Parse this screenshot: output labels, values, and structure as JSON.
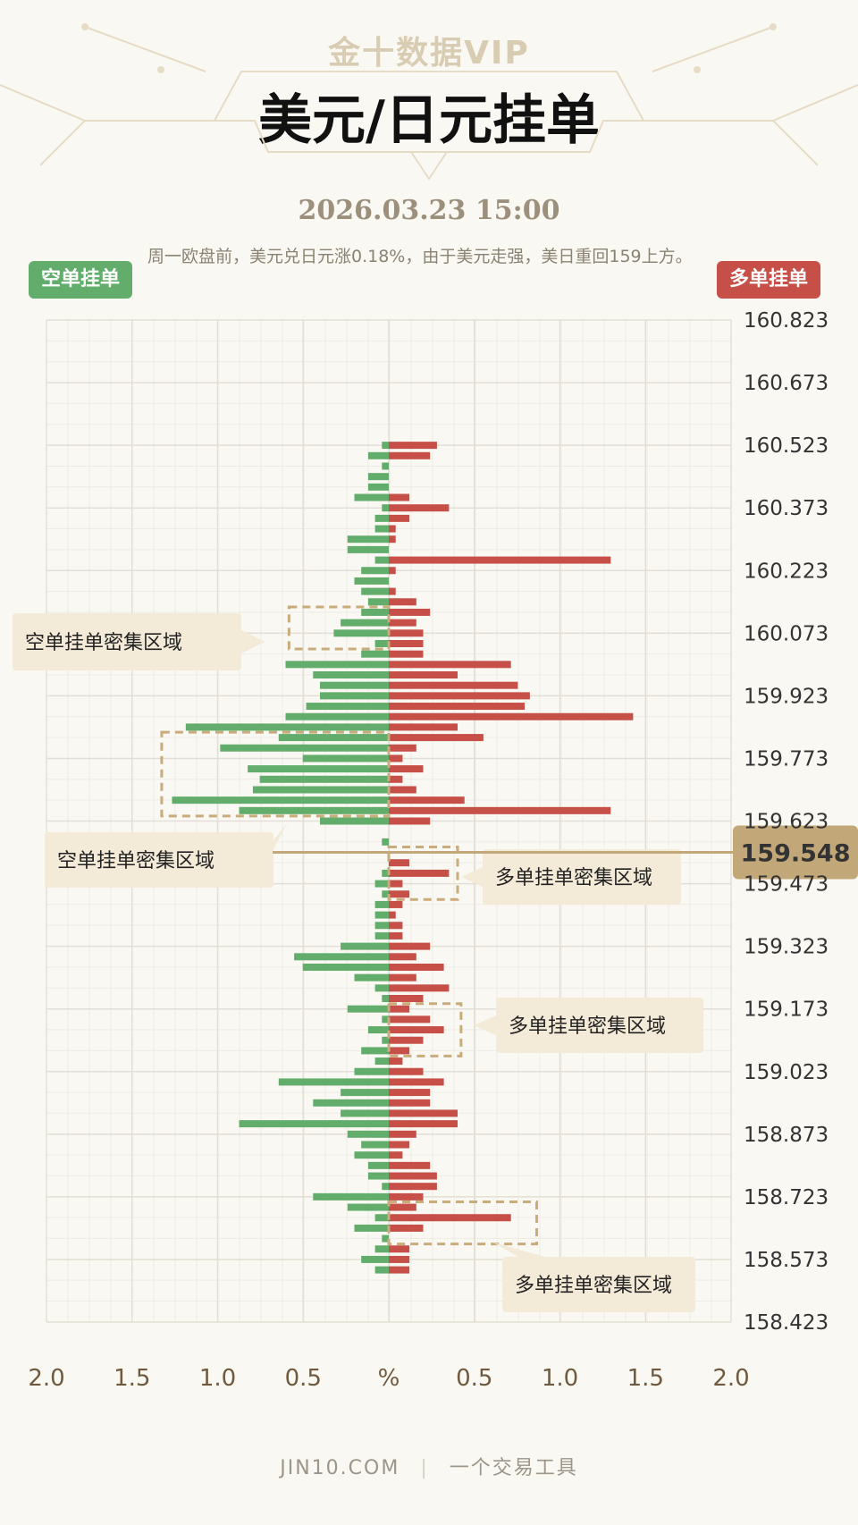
{
  "brand": "金十数据VIP",
  "title": "美元/日元挂单",
  "datetime": "2026.03.23 15:00",
  "summary": "周一欧盘前，美元兑日元涨0.18%，由于美元走强，美日重回159上方。",
  "legend": {
    "short_label": "空单挂单",
    "long_label": "多单挂单"
  },
  "footer": {
    "site": "JIN10.COM",
    "slogan": "一个交易工具"
  },
  "annotations": {
    "short_zone_1": "空单挂单密集区域",
    "short_zone_2": "空单挂单密集区域",
    "long_zone_1": "多单挂单密集区域",
    "long_zone_2": "多单挂单密集区域",
    "long_zone_3": "多单挂单密集区域"
  },
  "colors": {
    "short": "#63ad6c",
    "long": "#c64f48",
    "current": "#c2a878",
    "callout_bg": "#f3ead8"
  },
  "chart_data": {
    "type": "bar",
    "orientation": "horizontal-diverging",
    "y_ticks": [
      "160.823",
      "160.673",
      "160.523",
      "160.373",
      "160.223",
      "160.073",
      "159.923",
      "159.773",
      "159.623",
      "159.473",
      "159.323",
      "159.173",
      "159.023",
      "158.873",
      "158.723",
      "158.573",
      "158.423"
    ],
    "x_ticks_left": [
      "2.0",
      "1.5",
      "1.0",
      "0.5"
    ],
    "x_center_label": "%",
    "x_ticks_right": [
      "0.5",
      "1.0",
      "1.5",
      "2.0"
    ],
    "xlim": [
      -2.0,
      2.0
    ],
    "ylim": [
      158.423,
      160.823
    ],
    "current_price": "159.548",
    "current_price_value": 159.548,
    "series": [
      {
        "name": "空单挂单",
        "side": "left",
        "points": [
          [
            160.523,
            0.04
          ],
          [
            160.498,
            0.12
          ],
          [
            160.473,
            0.04
          ],
          [
            160.448,
            0.12
          ],
          [
            160.423,
            0.12
          ],
          [
            160.398,
            0.2
          ],
          [
            160.373,
            0.04
          ],
          [
            160.348,
            0.08
          ],
          [
            160.323,
            0.08
          ],
          [
            160.298,
            0.24
          ],
          [
            160.273,
            0.24
          ],
          [
            160.248,
            0.08
          ],
          [
            160.223,
            0.16
          ],
          [
            160.198,
            0.2
          ],
          [
            160.173,
            0.16
          ],
          [
            160.148,
            0.12
          ],
          [
            160.123,
            0.16
          ],
          [
            160.098,
            0.28
          ],
          [
            160.073,
            0.32
          ],
          [
            160.048,
            0.08
          ],
          [
            160.023,
            0.16
          ],
          [
            159.998,
            0.6
          ],
          [
            159.973,
            0.44
          ],
          [
            159.948,
            0.4
          ],
          [
            159.923,
            0.4
          ],
          [
            159.898,
            0.48
          ],
          [
            159.873,
            0.6
          ],
          [
            159.848,
            1.18
          ],
          [
            159.823,
            0.64
          ],
          [
            159.798,
            0.98
          ],
          [
            159.773,
            0.5
          ],
          [
            159.748,
            0.82
          ],
          [
            159.723,
            0.75
          ],
          [
            159.698,
            0.79
          ],
          [
            159.673,
            1.26
          ],
          [
            159.648,
            0.87
          ],
          [
            159.623,
            0.4
          ],
          [
            159.573,
            0.04
          ],
          [
            159.498,
            0.04
          ],
          [
            159.473,
            0.08
          ],
          [
            159.448,
            0.04
          ],
          [
            159.423,
            0.08
          ],
          [
            159.398,
            0.08
          ],
          [
            159.373,
            0.08
          ],
          [
            159.348,
            0.08
          ],
          [
            159.323,
            0.28
          ],
          [
            159.298,
            0.55
          ],
          [
            159.273,
            0.5
          ],
          [
            159.248,
            0.2
          ],
          [
            159.223,
            0.08
          ],
          [
            159.198,
            0.04
          ],
          [
            159.173,
            0.24
          ],
          [
            159.148,
            0.04
          ],
          [
            159.123,
            0.12
          ],
          [
            159.098,
            0.04
          ],
          [
            159.073,
            0.16
          ],
          [
            159.048,
            0.08
          ],
          [
            159.023,
            0.2
          ],
          [
            158.998,
            0.64
          ],
          [
            158.973,
            0.28
          ],
          [
            158.948,
            0.44
          ],
          [
            158.923,
            0.28
          ],
          [
            158.898,
            0.87
          ],
          [
            158.873,
            0.24
          ],
          [
            158.848,
            0.16
          ],
          [
            158.823,
            0.2
          ],
          [
            158.798,
            0.12
          ],
          [
            158.773,
            0.12
          ],
          [
            158.748,
            0.04
          ],
          [
            158.723,
            0.44
          ],
          [
            158.698,
            0.24
          ],
          [
            158.673,
            0.08
          ],
          [
            158.648,
            0.2
          ],
          [
            158.623,
            0.04
          ],
          [
            158.598,
            0.08
          ],
          [
            158.573,
            0.16
          ],
          [
            158.548,
            0.08
          ]
        ]
      },
      {
        "name": "多单挂单",
        "side": "right",
        "points": [
          [
            160.523,
            0.28
          ],
          [
            160.498,
            0.24
          ],
          [
            160.398,
            0.12
          ],
          [
            160.373,
            0.35
          ],
          [
            160.348,
            0.12
          ],
          [
            160.323,
            0.04
          ],
          [
            160.298,
            0.04
          ],
          [
            160.248,
            1.29
          ],
          [
            160.223,
            0.04
          ],
          [
            160.173,
            0.04
          ],
          [
            160.148,
            0.16
          ],
          [
            160.123,
            0.24
          ],
          [
            160.098,
            0.16
          ],
          [
            160.073,
            0.2
          ],
          [
            160.048,
            0.2
          ],
          [
            160.023,
            0.2
          ],
          [
            159.998,
            0.71
          ],
          [
            159.973,
            0.4
          ],
          [
            159.948,
            0.75
          ],
          [
            159.923,
            0.82
          ],
          [
            159.898,
            0.79
          ],
          [
            159.873,
            1.42
          ],
          [
            159.848,
            0.4
          ],
          [
            159.823,
            0.55
          ],
          [
            159.798,
            0.16
          ],
          [
            159.773,
            0.08
          ],
          [
            159.748,
            0.2
          ],
          [
            159.723,
            0.08
          ],
          [
            159.698,
            0.16
          ],
          [
            159.673,
            0.44
          ],
          [
            159.648,
            1.29
          ],
          [
            159.623,
            0.24
          ],
          [
            159.523,
            0.12
          ],
          [
            159.498,
            0.35
          ],
          [
            159.473,
            0.08
          ],
          [
            159.448,
            0.12
          ],
          [
            159.423,
            0.08
          ],
          [
            159.398,
            0.04
          ],
          [
            159.373,
            0.08
          ],
          [
            159.348,
            0.08
          ],
          [
            159.323,
            0.24
          ],
          [
            159.298,
            0.16
          ],
          [
            159.273,
            0.32
          ],
          [
            159.248,
            0.16
          ],
          [
            159.223,
            0.35
          ],
          [
            159.198,
            0.2
          ],
          [
            159.173,
            0.12
          ],
          [
            159.148,
            0.24
          ],
          [
            159.123,
            0.32
          ],
          [
            159.098,
            0.2
          ],
          [
            159.073,
            0.12
          ],
          [
            159.048,
            0.08
          ],
          [
            159.023,
            0.2
          ],
          [
            158.998,
            0.32
          ],
          [
            158.973,
            0.24
          ],
          [
            158.948,
            0.24
          ],
          [
            158.923,
            0.4
          ],
          [
            158.898,
            0.4
          ],
          [
            158.873,
            0.16
          ],
          [
            158.848,
            0.12
          ],
          [
            158.823,
            0.08
          ],
          [
            158.798,
            0.24
          ],
          [
            158.773,
            0.28
          ],
          [
            158.748,
            0.28
          ],
          [
            158.723,
            0.2
          ],
          [
            158.698,
            0.16
          ],
          [
            158.673,
            0.71
          ],
          [
            158.648,
            0.2
          ],
          [
            158.598,
            0.12
          ],
          [
            158.573,
            0.12
          ],
          [
            158.548,
            0.12
          ]
        ]
      }
    ],
    "zones": [
      {
        "side": "short",
        "from": 160.048,
        "to": 160.123,
        "x_from": -0.58,
        "x_to": 0.0,
        "label_key": "short_zone_1"
      },
      {
        "side": "short",
        "from": 159.648,
        "to": 159.823,
        "x_from": -1.32,
        "x_to": 0.0,
        "label_key": "short_zone_2"
      },
      {
        "side": "long",
        "from": 159.448,
        "to": 159.548,
        "x_from": 0.0,
        "x_to": 0.4,
        "label_key": "long_zone_1"
      },
      {
        "side": "long",
        "from": 159.073,
        "to": 159.173,
        "x_from": 0.0,
        "x_to": 0.42,
        "label_key": "long_zone_2"
      },
      {
        "side": "long",
        "from": 158.623,
        "to": 158.698,
        "x_from": 0.0,
        "x_to": 0.86,
        "label_key": "long_zone_3"
      }
    ]
  }
}
